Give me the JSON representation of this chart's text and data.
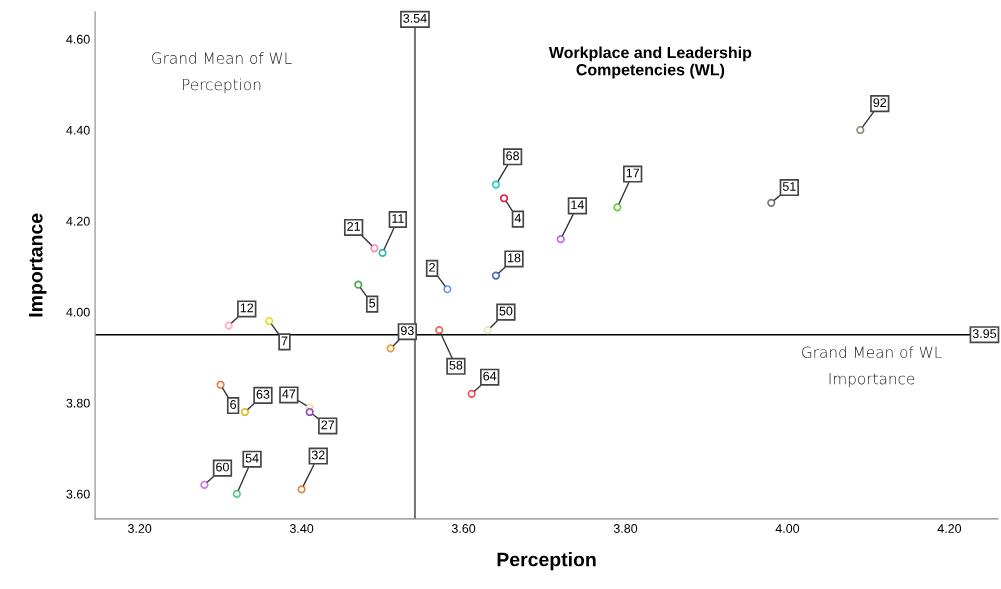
{
  "chart_data": {
    "type": "scatter",
    "title": "Workplace and Leadership\nCompetencies (WL)",
    "xlabel": "Perception",
    "ylabel": "Importance",
    "x": [
      4.09,
      3.98,
      3.79,
      3.64,
      3.65,
      3.72,
      3.64,
      3.58,
      3.63,
      3.57,
      3.61,
      3.49,
      3.5,
      3.47,
      3.31,
      3.36,
      3.51,
      3.3,
      3.33,
      3.41,
      3.41,
      3.28,
      3.32,
      3.4
    ],
    "series": [
      {
        "values": [
          4.4,
          4.24,
          4.23,
          4.28,
          4.25,
          4.16,
          4.08,
          4.05,
          3.96,
          3.96,
          3.82,
          4.14,
          4.13,
          4.06,
          3.97,
          3.98,
          3.92,
          3.84,
          3.78,
          3.79,
          3.78,
          3.62,
          3.6,
          3.61
        ],
        "colors": [
          "#8c8c6e",
          "#777777",
          "#66cc44",
          "#22cccc",
          "#dd2244",
          "#bb66ee",
          "#4466cc",
          "#6699ee",
          "#e8e4cc",
          "#ee6655",
          "#ee5555",
          "#ff88aa",
          "#22bbaa",
          "#44aa55",
          "#ffaacc",
          "#eedd22",
          "#ee9933",
          "#ee7744",
          "#ddbb22",
          "#e0e0b0",
          "#9944bb",
          "#cc77ee",
          "#55cc88",
          "#dd8844"
        ]
      }
    ],
    "annotations": [
      "Grand Mean of WL\nPerception",
      "Grand Mean of WL\nImportance",
      {
        "text": "92",
        "x": 4.09,
        "y": 4.4
      },
      {
        "text": "51",
        "x": 3.98,
        "y": 4.24
      },
      {
        "text": "17",
        "x": 3.79,
        "y": 4.23
      },
      {
        "text": "68",
        "x": 3.64,
        "y": 4.28
      },
      {
        "text": "4",
        "x": 3.65,
        "y": 4.25
      },
      {
        "text": "14",
        "x": 3.72,
        "y": 4.16
      },
      {
        "text": "18",
        "x": 3.64,
        "y": 4.08
      },
      {
        "text": "2",
        "x": 3.58,
        "y": 4.05
      },
      {
        "text": "50",
        "x": 3.63,
        "y": 3.96
      },
      {
        "text": "58",
        "x": 3.57,
        "y": 3.96
      },
      {
        "text": "64",
        "x": 3.61,
        "y": 3.82
      },
      {
        "text": "21",
        "x": 3.49,
        "y": 4.14
      },
      {
        "text": "11",
        "x": 3.5,
        "y": 4.13
      },
      {
        "text": "5",
        "x": 3.47,
        "y": 4.06
      },
      {
        "text": "12",
        "x": 3.31,
        "y": 3.97
      },
      {
        "text": "7",
        "x": 3.36,
        "y": 3.98
      },
      {
        "text": "93",
        "x": 3.51,
        "y": 3.92
      },
      {
        "text": "6",
        "x": 3.3,
        "y": 3.84
      },
      {
        "text": "63",
        "x": 3.33,
        "y": 3.78
      },
      {
        "text": "47",
        "x": 3.41,
        "y": 3.79
      },
      {
        "text": "27",
        "x": 3.41,
        "y": 3.78
      },
      {
        "text": "60",
        "x": 3.28,
        "y": 3.62
      },
      {
        "text": "54",
        "x": 3.32,
        "y": 3.6
      },
      {
        "text": "32",
        "x": 3.4,
        "y": 3.61
      }
    ],
    "ref_lines": [
      {
        "axis": "x",
        "value": 3.54,
        "label": "3.54",
        "color": "#777777"
      },
      {
        "axis": "y",
        "value": 3.95,
        "label": "3.95",
        "color": "#000000"
      }
    ],
    "xlim": [
      3.145,
      4.26
    ],
    "ylim": [
      3.545,
      4.66
    ],
    "xticks": [
      {
        "value": 3.2,
        "label": "3.20"
      },
      {
        "value": 3.4,
        "label": "3.40"
      },
      {
        "value": 3.6,
        "label": "3.60"
      },
      {
        "value": 3.8,
        "label": "3.80"
      },
      {
        "value": 4.0,
        "label": "4.00"
      },
      {
        "value": 4.2,
        "label": "4.20"
      }
    ],
    "yticks": [
      {
        "value": 3.6,
        "label": "3.60"
      },
      {
        "value": 3.8,
        "label": "3.80"
      },
      {
        "value": 4.0,
        "label": "4.00"
      },
      {
        "value": 4.2,
        "label": "4.20"
      },
      {
        "value": 4.4,
        "label": "4.40"
      },
      {
        "value": 4.6,
        "label": "4.60"
      }
    ],
    "marker": "circle",
    "grid": false
  }
}
